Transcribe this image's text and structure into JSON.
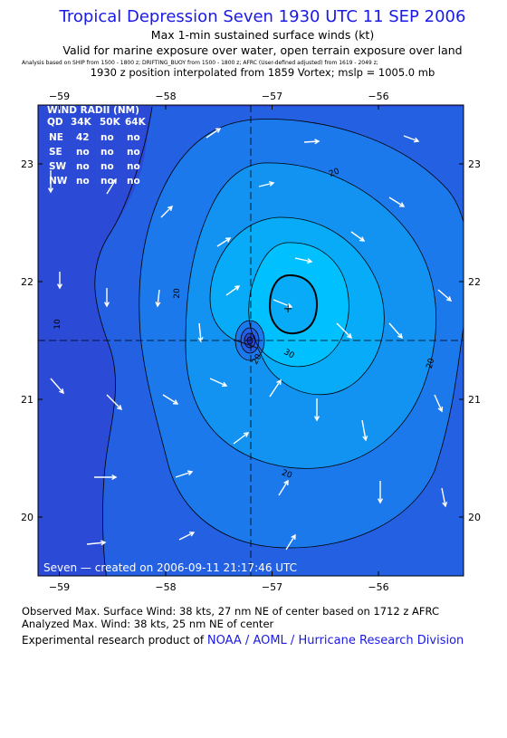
{
  "header": {
    "title": "Tropical Depression Seven 1930 UTC 11 SEP 2006",
    "line1": "Max 1-min sustained surface winds (kt)",
    "line2": "Valid for marine exposure over water, open terrain exposure over land",
    "line3": "Analysis based on SHIP from 1500 - 1800 z;  DRIFTING_BUOY from 1500 - 1800 z;  AFRC (User-defined adjusted) from 1619 - 2049 z;",
    "line4": "1930 z position interpolated from 1859 Vortex; mslp = 1005.0 mb"
  },
  "map": {
    "lon_labels": [
      "−59",
      "−58",
      "−57",
      "−56"
    ],
    "lon_values": [
      -59,
      -58,
      -57,
      -56
    ],
    "lat_labels": [
      "23",
      "22",
      "21",
      "20"
    ],
    "lat_values": [
      23,
      22,
      21,
      20
    ],
    "lon_range": [
      -59.2,
      -55.2
    ],
    "lat_range": [
      19.5,
      23.5
    ],
    "center": {
      "lon": -57.2,
      "lat": 21.5
    },
    "max_wind": {
      "lon": -56.85,
      "lat": 21.77
    },
    "wind_radii": {
      "title": "WIND RADII (NM)",
      "header": [
        "QD",
        "34K",
        "50K",
        "64K"
      ],
      "rows": [
        [
          "NE",
          "42",
          "no",
          "no"
        ],
        [
          "SE",
          "no",
          "no",
          "no"
        ],
        [
          "SW",
          "no",
          "no",
          "no"
        ],
        [
          "NW",
          "no",
          "no",
          "no"
        ]
      ]
    },
    "contour_labels": [
      "10",
      "20",
      "20",
      "20",
      "20",
      "20",
      "30"
    ],
    "created": "Seven — created on 2006-09-11 21:17:46 UTC",
    "colors": {
      "level0": "#2b4ad6",
      "level1": "#2460e2",
      "level2": "#1c79ec",
      "level3": "#1293f2",
      "level4": "#07abf7",
      "level5": "#00c0ff"
    }
  },
  "footer": {
    "observed": "Observed Max. Surface Wind: 38 kts, 27 nm NE of center based on 1712 z AFRC",
    "analyzed": "Analyzed Max. Wind: 38 kts, 25 nm NE of center",
    "credit_prefix": "Experimental research product of ",
    "credit_link": "NOAA / AOML / Hurricane Research Division"
  }
}
